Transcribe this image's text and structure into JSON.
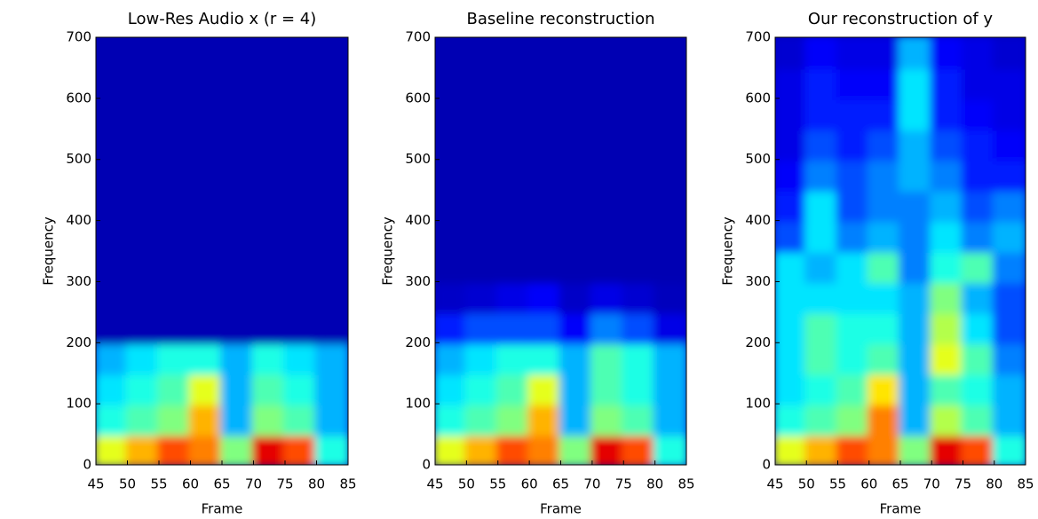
{
  "chart_data": [
    {
      "type": "heatmap",
      "title": "Low-Res Audio x (r = 4)",
      "xlabel": "Frame",
      "ylabel": "Frequency",
      "colormap": "jet",
      "xlim": [
        45,
        85
      ],
      "ylim": [
        0,
        700
      ],
      "xticks": [
        45,
        50,
        55,
        60,
        65,
        70,
        75,
        80,
        85
      ],
      "yticks": [
        0,
        100,
        200,
        300,
        400,
        500,
        600,
        700
      ],
      "xbins": [
        45,
        50,
        55,
        60,
        65,
        70,
        75,
        80,
        85
      ],
      "ybins": [
        0,
        50,
        100,
        150,
        200,
        250,
        300,
        350,
        400,
        450,
        500,
        550,
        600,
        650,
        700
      ],
      "values": [
        [
          0.6,
          0.7,
          0.8,
          0.75,
          0.5,
          0.9,
          0.8,
          0.4
        ],
        [
          0.4,
          0.45,
          0.5,
          0.7,
          0.3,
          0.5,
          0.45,
          0.3
        ],
        [
          0.35,
          0.4,
          0.45,
          0.6,
          0.3,
          0.45,
          0.4,
          0.3
        ],
        [
          0.3,
          0.35,
          0.4,
          0.4,
          0.3,
          0.4,
          0.35,
          0.3
        ],
        [
          0.05,
          0.05,
          0.05,
          0.05,
          0.05,
          0.05,
          0.05,
          0.05
        ],
        [
          0.05,
          0.05,
          0.05,
          0.05,
          0.05,
          0.05,
          0.05,
          0.05
        ],
        [
          0.05,
          0.05,
          0.05,
          0.05,
          0.05,
          0.05,
          0.05,
          0.05
        ],
        [
          0.05,
          0.05,
          0.05,
          0.05,
          0.05,
          0.05,
          0.05,
          0.05
        ],
        [
          0.05,
          0.05,
          0.05,
          0.05,
          0.05,
          0.05,
          0.05,
          0.05
        ],
        [
          0.05,
          0.05,
          0.05,
          0.05,
          0.05,
          0.05,
          0.05,
          0.05
        ],
        [
          0.05,
          0.05,
          0.05,
          0.05,
          0.05,
          0.05,
          0.05,
          0.05
        ],
        [
          0.05,
          0.05,
          0.05,
          0.05,
          0.05,
          0.05,
          0.05,
          0.05
        ],
        [
          0.05,
          0.05,
          0.05,
          0.05,
          0.05,
          0.05,
          0.05,
          0.05
        ],
        [
          0.05,
          0.05,
          0.05,
          0.05,
          0.05,
          0.05,
          0.05,
          0.05
        ]
      ]
    },
    {
      "type": "heatmap",
      "title": "Baseline reconstruction",
      "xlabel": "Frame",
      "ylabel": "Frequency",
      "colormap": "jet",
      "xlim": [
        45,
        85
      ],
      "ylim": [
        0,
        700
      ],
      "xticks": [
        45,
        50,
        55,
        60,
        65,
        70,
        75,
        80,
        85
      ],
      "yticks": [
        0,
        100,
        200,
        300,
        400,
        500,
        600,
        700
      ],
      "xbins": [
        45,
        50,
        55,
        60,
        65,
        70,
        75,
        80,
        85
      ],
      "ybins": [
        0,
        50,
        100,
        150,
        200,
        250,
        300,
        350,
        400,
        450,
        500,
        550,
        600,
        650,
        700
      ],
      "values": [
        [
          0.6,
          0.7,
          0.8,
          0.75,
          0.5,
          0.9,
          0.8,
          0.4
        ],
        [
          0.4,
          0.45,
          0.5,
          0.7,
          0.3,
          0.5,
          0.45,
          0.3
        ],
        [
          0.35,
          0.4,
          0.45,
          0.6,
          0.3,
          0.45,
          0.4,
          0.3
        ],
        [
          0.3,
          0.35,
          0.4,
          0.4,
          0.3,
          0.45,
          0.4,
          0.3
        ],
        [
          0.15,
          0.2,
          0.2,
          0.2,
          0.12,
          0.25,
          0.2,
          0.1
        ],
        [
          0.07,
          0.08,
          0.1,
          0.12,
          0.07,
          0.1,
          0.08,
          0.06
        ],
        [
          0.05,
          0.05,
          0.05,
          0.05,
          0.05,
          0.05,
          0.05,
          0.05
        ],
        [
          0.05,
          0.05,
          0.05,
          0.05,
          0.05,
          0.05,
          0.05,
          0.05
        ],
        [
          0.05,
          0.05,
          0.05,
          0.05,
          0.05,
          0.05,
          0.05,
          0.05
        ],
        [
          0.05,
          0.05,
          0.05,
          0.05,
          0.05,
          0.05,
          0.05,
          0.05
        ],
        [
          0.05,
          0.05,
          0.05,
          0.05,
          0.05,
          0.05,
          0.05,
          0.05
        ],
        [
          0.05,
          0.05,
          0.05,
          0.05,
          0.05,
          0.05,
          0.05,
          0.05
        ],
        [
          0.05,
          0.05,
          0.05,
          0.05,
          0.05,
          0.05,
          0.05,
          0.05
        ],
        [
          0.05,
          0.05,
          0.05,
          0.05,
          0.05,
          0.05,
          0.05,
          0.05
        ]
      ]
    },
    {
      "type": "heatmap",
      "title": "Our reconstruction of y",
      "xlabel": "Frame",
      "ylabel": "Frequency",
      "colormap": "jet",
      "xlim": [
        45,
        85
      ],
      "ylim": [
        0,
        700
      ],
      "xticks": [
        45,
        50,
        55,
        60,
        65,
        70,
        75,
        80,
        85
      ],
      "yticks": [
        0,
        100,
        200,
        300,
        400,
        500,
        600,
        700
      ],
      "xbins": [
        45,
        50,
        55,
        60,
        65,
        70,
        75,
        80,
        85
      ],
      "ybins": [
        0,
        50,
        100,
        150,
        200,
        250,
        300,
        350,
        400,
        450,
        500,
        550,
        600,
        650,
        700
      ],
      "values": [
        [
          0.6,
          0.7,
          0.8,
          0.75,
          0.5,
          0.9,
          0.8,
          0.4
        ],
        [
          0.4,
          0.45,
          0.5,
          0.75,
          0.3,
          0.55,
          0.45,
          0.3
        ],
        [
          0.35,
          0.4,
          0.45,
          0.65,
          0.3,
          0.45,
          0.4,
          0.3
        ],
        [
          0.35,
          0.45,
          0.4,
          0.45,
          0.3,
          0.6,
          0.45,
          0.25
        ],
        [
          0.35,
          0.45,
          0.4,
          0.4,
          0.3,
          0.55,
          0.35,
          0.2
        ],
        [
          0.35,
          0.35,
          0.35,
          0.35,
          0.3,
          0.5,
          0.3,
          0.2
        ],
        [
          0.35,
          0.3,
          0.35,
          0.45,
          0.25,
          0.4,
          0.45,
          0.25
        ],
        [
          0.2,
          0.35,
          0.25,
          0.3,
          0.25,
          0.35,
          0.25,
          0.3
        ],
        [
          0.15,
          0.35,
          0.2,
          0.25,
          0.25,
          0.3,
          0.2,
          0.25
        ],
        [
          0.12,
          0.25,
          0.2,
          0.25,
          0.3,
          0.25,
          0.15,
          0.15
        ],
        [
          0.1,
          0.2,
          0.15,
          0.2,
          0.3,
          0.2,
          0.15,
          0.12
        ],
        [
          0.1,
          0.15,
          0.15,
          0.15,
          0.35,
          0.15,
          0.12,
          0.1
        ],
        [
          0.1,
          0.15,
          0.12,
          0.12,
          0.35,
          0.15,
          0.1,
          0.1
        ],
        [
          0.08,
          0.12,
          0.1,
          0.1,
          0.3,
          0.12,
          0.1,
          0.08
        ]
      ]
    }
  ]
}
